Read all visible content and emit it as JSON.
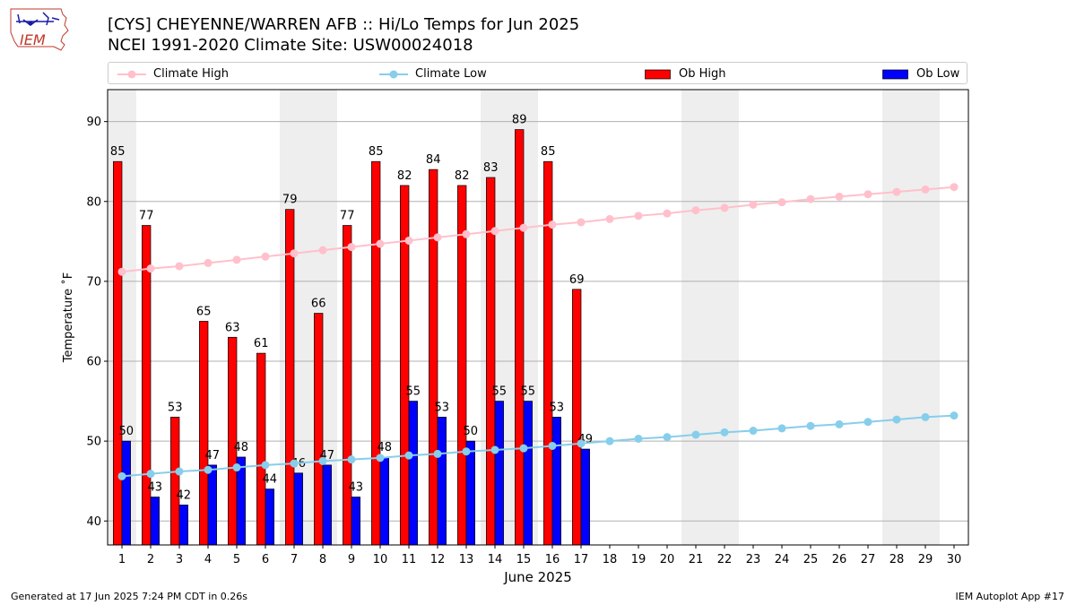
{
  "title_line1": "[CYS] CHEYENNE/WARREN AFB :: Hi/Lo Temps for Jun 2025",
  "title_line2": "NCEI 1991-2020 Climate Site: USW00024018",
  "logo_text": "IEM",
  "footer_left": "Generated at 17 Jun 2025 7:24 PM CDT in 0.26s",
  "footer_right": "IEM Autoplot App #17",
  "colors": {
    "climate_high": "#ffc0cb",
    "climate_low": "#87ceeb",
    "ob_high": "#ff0000",
    "ob_low": "#0000ff",
    "weekend_band": "#eeeeee",
    "grid": "#b0b0b0"
  },
  "chart_data": {
    "type": "bar",
    "xlabel": "June 2025",
    "ylabel": "Temperature ˚F",
    "ylim": [
      37,
      94
    ],
    "yticks": [
      40,
      50,
      60,
      70,
      80,
      90
    ],
    "grid": "horizontal",
    "legend_position": "top",
    "days": [
      1,
      2,
      3,
      4,
      5,
      6,
      7,
      8,
      9,
      10,
      11,
      12,
      13,
      14,
      15,
      16,
      17,
      18,
      19,
      20,
      21,
      22,
      23,
      24,
      25,
      26,
      27,
      28,
      29,
      30
    ],
    "weekend_days": [
      1,
      7,
      8,
      14,
      15,
      21,
      22,
      28,
      29
    ],
    "series": [
      {
        "name": "Climate High",
        "kind": "line",
        "values": [
          71.2,
          71.6,
          71.9,
          72.3,
          72.7,
          73.1,
          73.5,
          73.9,
          74.3,
          74.7,
          75.1,
          75.5,
          75.9,
          76.3,
          76.7,
          77.1,
          77.4,
          77.8,
          78.2,
          78.5,
          78.9,
          79.2,
          79.6,
          79.9,
          80.3,
          80.6,
          80.9,
          81.2,
          81.5,
          81.8
        ]
      },
      {
        "name": "Climate Low",
        "kind": "line",
        "values": [
          45.6,
          45.9,
          46.2,
          46.4,
          46.7,
          47.0,
          47.2,
          47.5,
          47.7,
          47.9,
          48.2,
          48.4,
          48.7,
          48.9,
          49.1,
          49.4,
          49.7,
          50.0,
          50.3,
          50.5,
          50.8,
          51.1,
          51.3,
          51.6,
          51.9,
          52.1,
          52.4,
          52.7,
          53.0,
          53.2
        ]
      },
      {
        "name": "Ob High",
        "kind": "bar",
        "values": [
          85,
          77,
          53,
          65,
          63,
          61,
          79,
          66,
          77,
          85,
          82,
          84,
          82,
          83,
          89,
          85,
          69
        ]
      },
      {
        "name": "Ob Low",
        "kind": "bar",
        "values": [
          50,
          43,
          42,
          47,
          48,
          44,
          46,
          47,
          43,
          48,
          55,
          53,
          50,
          55,
          55,
          53,
          49
        ]
      }
    ]
  }
}
